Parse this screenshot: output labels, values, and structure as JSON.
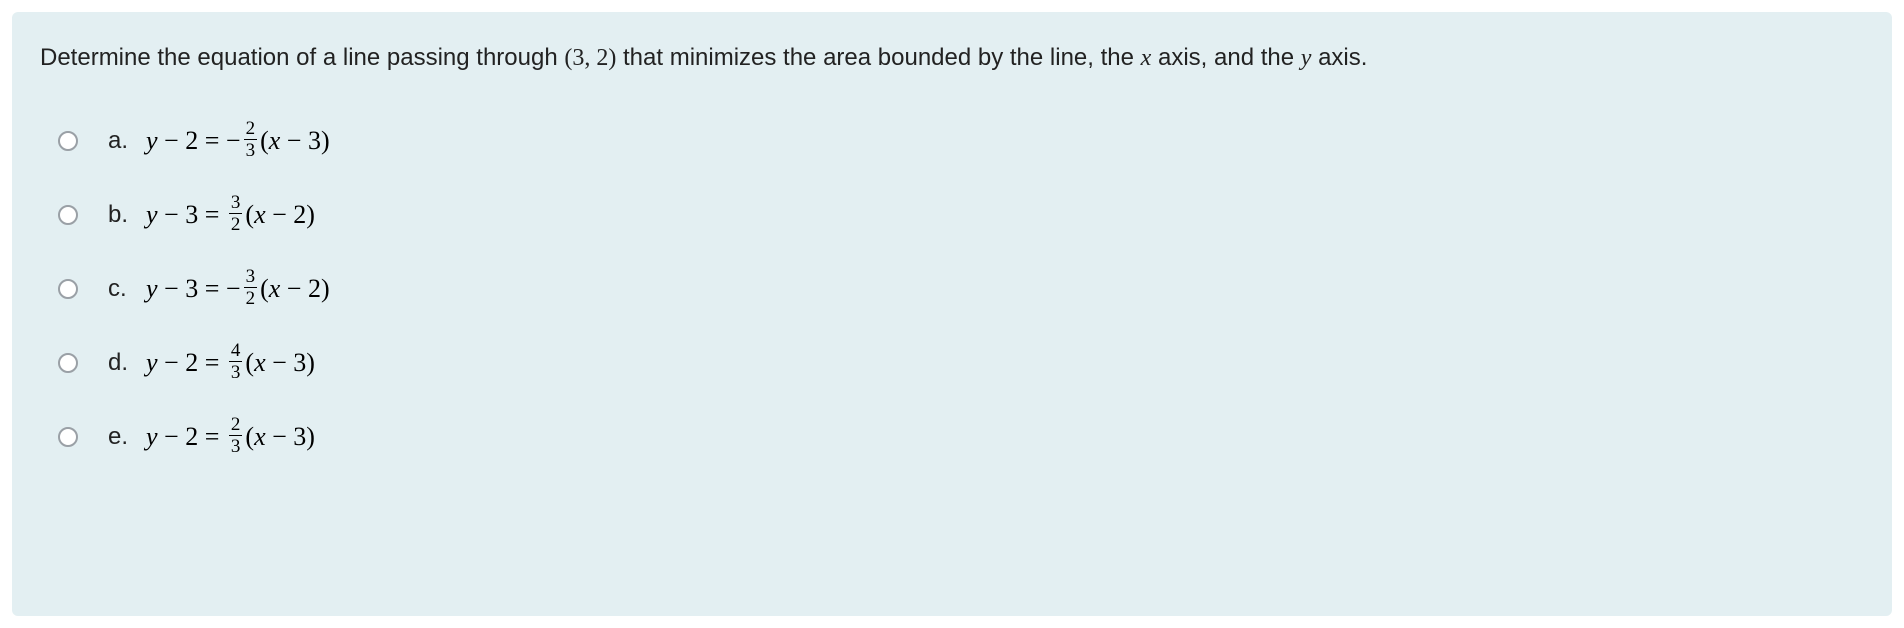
{
  "question": {
    "prefix": "Determine the equation of a line passing through ",
    "point": "(3, 2)",
    "middle": " that minimizes the area bounded by the line, the ",
    "xaxis": "x",
    "axis_word1": " axis, and the ",
    "yaxis": "y",
    "axis_word2": " axis."
  },
  "options": {
    "a": {
      "letter": "a.",
      "left_y_offset": "2",
      "signs_eq": " = ",
      "neg": "−",
      "frac_num": "2",
      "frac_den": "3",
      "paren_open": "(",
      "xvar": "x",
      "minus": " − ",
      "right_const": "3",
      "paren_close": ")"
    },
    "b": {
      "letter": "b.",
      "left_y_offset": "3",
      "signs_eq": " = ",
      "neg": "",
      "frac_num": "3",
      "frac_den": "2",
      "paren_open": "(",
      "xvar": "x",
      "minus": " − ",
      "right_const": "2",
      "paren_close": ")"
    },
    "c": {
      "letter": "c.",
      "left_y_offset": "3",
      "signs_eq": " = ",
      "neg": "−",
      "frac_num": "3",
      "frac_den": "2",
      "paren_open": "(",
      "xvar": "x",
      "minus": " − ",
      "right_const": "2",
      "paren_close": ")"
    },
    "d": {
      "letter": "d.",
      "left_y_offset": "2",
      "signs_eq": " = ",
      "neg": "",
      "frac_num": "4",
      "frac_den": "3",
      "paren_open": "(",
      "xvar": "x",
      "minus": " − ",
      "right_const": "3",
      "paren_close": ")"
    },
    "e": {
      "letter": "e.",
      "left_y_offset": "2",
      "signs_eq": " = ",
      "neg": "",
      "frac_num": "2",
      "frac_den": "3",
      "paren_open": "(",
      "xvar": "x",
      "minus": " − ",
      "right_const": "3",
      "paren_close": ")"
    }
  },
  "colors": {
    "panel_bg": "#e3eff2",
    "text": "#222222",
    "radio_border": "#9aa0a6"
  }
}
